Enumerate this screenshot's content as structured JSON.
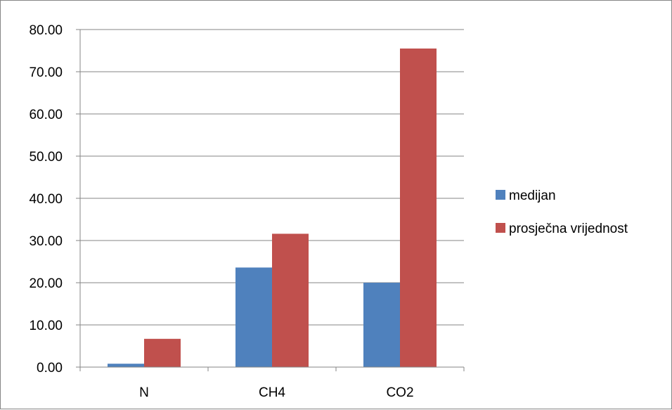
{
  "chart_data": {
    "type": "bar",
    "title": "",
    "xlabel": "",
    "ylabel": "",
    "categories": [
      "N",
      "CH4",
      "CO2"
    ],
    "series": [
      {
        "name": "medijan",
        "values": [
          0.8,
          23.6,
          20.0
        ],
        "color": "#4F81BD"
      },
      {
        "name": "prosječna vrijednost",
        "values": [
          6.7,
          31.6,
          75.5
        ],
        "color": "#C0504D"
      }
    ],
    "ylim": [
      0,
      80
    ],
    "yticks": [
      0,
      10,
      20,
      30,
      40,
      50,
      60,
      70,
      80
    ],
    "ytick_labels": [
      "0.00",
      "10.00",
      "20.00",
      "30.00",
      "40.00",
      "50.00",
      "60.00",
      "70.00",
      "80.00"
    ],
    "grid": "horizontal",
    "legend_position": "right"
  }
}
